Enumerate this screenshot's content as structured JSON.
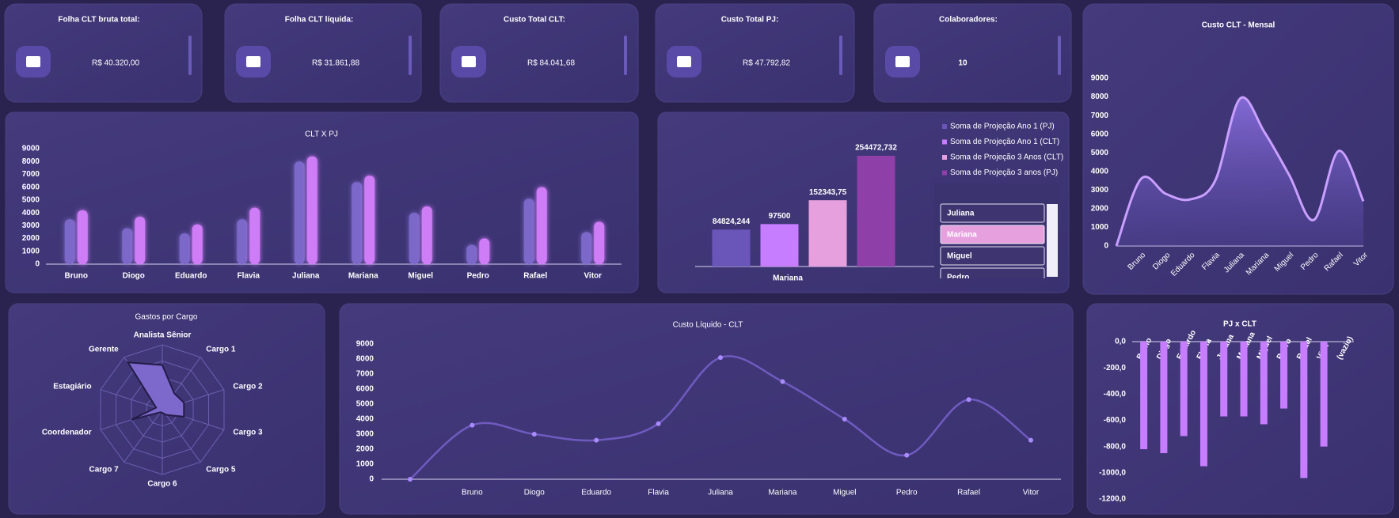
{
  "cards": [
    {
      "title": "Folha CLT bruta total:",
      "value": "R$ 40.320,00"
    },
    {
      "title": "Folha CLT líquida:",
      "value": "R$ 31.861,88"
    },
    {
      "title": "Custo Total CLT:",
      "value": "R$ 84.041,68"
    },
    {
      "title": "Custo Total PJ:",
      "value": "R$ 47.792,82"
    },
    {
      "title": "Colaboradores:",
      "value": "10"
    }
  ],
  "slicer": {
    "items": [
      "Juliana",
      "Mariana",
      "Miguel",
      "Pedro"
    ],
    "selected": 1
  },
  "chart_data": [
    {
      "type": "bar",
      "title": "CLT X PJ",
      "categories": [
        "Bruno",
        "Diogo",
        "Eduardo",
        "Flavia",
        "Juliana",
        "Mariana",
        "Miguel",
        "Pedro",
        "Rafael",
        "Vitor"
      ],
      "series": [
        {
          "color": "#7b68c8",
          "values": [
            3500,
            2800,
            2400,
            3500,
            8000,
            6400,
            4000,
            1500,
            5100,
            2500
          ]
        },
        {
          "color": "#cf7cf7",
          "values": [
            4200,
            3700,
            3100,
            4400,
            8400,
            6900,
            4500,
            2000,
            6000,
            3300
          ]
        }
      ],
      "ylim": [
        0,
        9000
      ],
      "yticks": [
        0,
        1000,
        2000,
        3000,
        4000,
        5000,
        6000,
        7000,
        8000,
        9000
      ]
    },
    {
      "type": "bar",
      "categories": [
        "Mariana"
      ],
      "series": [
        {
          "name": "Soma de Projeção Ano 1 (PJ)",
          "color": "#6a55b8",
          "values": [
            84824.244
          ],
          "value_labels": [
            "84824,244"
          ]
        },
        {
          "name": "Soma de Projeção Ano 1 (CLT)",
          "color": "#c77dff",
          "values": [
            97500
          ],
          "value_labels": [
            "97500"
          ]
        },
        {
          "name": "Soma de Projeção 3 Anos (CLT)",
          "color": "#e6a0de",
          "values": [
            152343.75
          ],
          "value_labels": [
            "152343,75"
          ]
        },
        {
          "name": "Soma de Projeção 3 anos (PJ)",
          "color": "#8e3fa8",
          "values": [
            254472.732
          ],
          "value_labels": [
            "254472,732"
          ]
        }
      ],
      "legend": "upper right"
    },
    {
      "type": "area",
      "title": "Custo CLT - Mensal",
      "smooth": true,
      "color": "#c9a0ff",
      "categories": [
        null,
        "Bruno",
        "Diogo",
        "Eduardo",
        "Flavia",
        "Juliana",
        "Mariana",
        "Miguel",
        "Pedro",
        "Rafael",
        "Vitor"
      ],
      "values": [
        0,
        3600,
        2800,
        2500,
        3500,
        7900,
        6100,
        3800,
        1400,
        5100,
        2400
      ],
      "ylim": [
        0,
        9000
      ],
      "yticks": [
        0,
        1000,
        2000,
        3000,
        4000,
        5000,
        6000,
        7000,
        8000,
        9000
      ]
    },
    {
      "type": "radar",
      "title": "Gastos por Cargo",
      "color": "#7d68cc",
      "categories": [
        "Analista Sênior",
        "Cargo 1",
        "Cargo 2",
        "Cargo 3",
        "Cargo 5",
        "Cargo 6",
        "Cargo 7",
        "Coordenador",
        "Estagiário",
        "Gerente"
      ],
      "values": [
        5500,
        2500,
        2800,
        2800,
        800,
        400,
        400,
        4000,
        800,
        7200
      ],
      "rlim": [
        0,
        8000
      ],
      "rticks": [
        0,
        2000,
        4000,
        6000,
        8000
      ]
    },
    {
      "type": "line",
      "title": "Custo Líquido - CLT",
      "smooth": true,
      "color": "#6f5bbf",
      "categories": [
        null,
        "Bruno",
        "Diogo",
        "Eduardo",
        "Flavia",
        "Juliana",
        "Mariana",
        "Miguel",
        "Pedro",
        "Rafael",
        "Vitor"
      ],
      "values": [
        0,
        3600,
        3000,
        2600,
        3700,
        8100,
        6500,
        4000,
        1600,
        5300,
        2600
      ],
      "ylim": [
        0,
        9000
      ],
      "yticks": [
        0,
        1000,
        2000,
        3000,
        4000,
        5000,
        6000,
        7000,
        8000,
        9000
      ]
    },
    {
      "type": "bar",
      "title": "PJ x CLT",
      "categories": [
        "Bruno",
        "Diogo",
        "Eduardo",
        "Flavia",
        "Juliana",
        "Mariana",
        "Miguel",
        "Pedro",
        "Rafael",
        "Vitor",
        "(vazio)"
      ],
      "series": [
        {
          "color": "#c77dff",
          "values": [
            -820,
            -850,
            -720,
            -950,
            -570,
            -570,
            -630,
            -510,
            -1040,
            -800,
            null
          ]
        }
      ],
      "ylim": [
        -1200,
        0
      ],
      "yticks": [
        {
          "value": 0,
          "label": "0,0"
        },
        {
          "value": -200,
          "label": "-200,0"
        },
        {
          "value": -400,
          "label": "-400,0"
        },
        {
          "value": -600,
          "label": "-600,0"
        },
        {
          "value": -800,
          "label": "-800,0"
        },
        {
          "value": -1000,
          "label": "-1000,0"
        },
        {
          "value": -1200,
          "label": "-1200,0"
        }
      ]
    }
  ]
}
